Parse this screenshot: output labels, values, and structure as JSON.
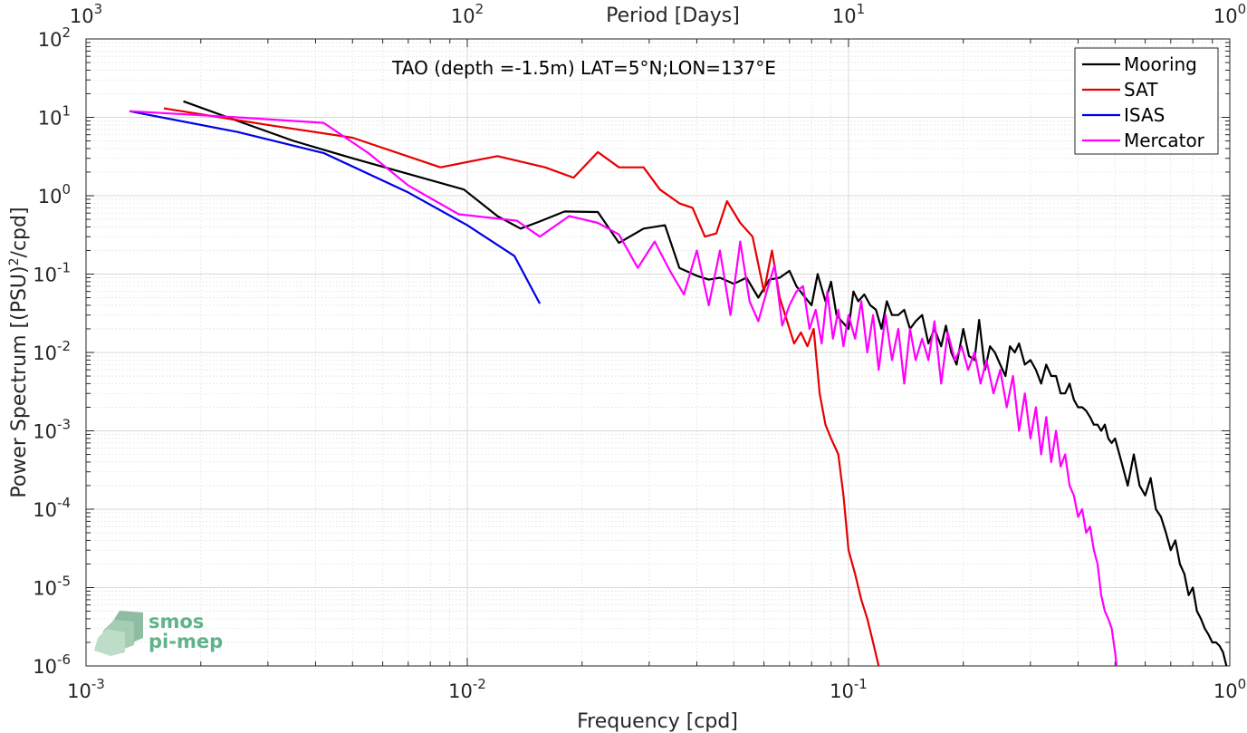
{
  "chart_data": {
    "type": "line",
    "title": "TAO (depth =-1.5m) LAT=5°N;LON=137°E",
    "xlabel": "Frequency [cpd]",
    "ylabel": "Power Spectrum [(PSU)²/cpd]",
    "top_xlabel": "Period [Days]",
    "xscale": "log",
    "yscale": "log",
    "xlim": [
      0.001,
      1
    ],
    "ylim": [
      1e-06,
      100
    ],
    "grid": true,
    "legend_position": "top-right",
    "x_ticks": [
      {
        "base": "10",
        "exp": "-3"
      },
      {
        "base": "10",
        "exp": "-2"
      },
      {
        "base": "10",
        "exp": "-1"
      },
      {
        "base": "10",
        "exp": "0"
      }
    ],
    "top_ticks": [
      {
        "base": "10",
        "exp": "3"
      },
      {
        "base": "10",
        "exp": "2"
      },
      {
        "base": "10",
        "exp": "1"
      },
      {
        "base": "10",
        "exp": "0"
      }
    ],
    "y_ticks": [
      {
        "base": "10",
        "exp": "2"
      },
      {
        "base": "10",
        "exp": "1"
      },
      {
        "base": "10",
        "exp": "0"
      },
      {
        "base": "10",
        "exp": "-1"
      },
      {
        "base": "10",
        "exp": "-2"
      },
      {
        "base": "10",
        "exp": "-3"
      },
      {
        "base": "10",
        "exp": "-4"
      },
      {
        "base": "10",
        "exp": "-5"
      },
      {
        "base": "10",
        "exp": "-6"
      }
    ],
    "series": [
      {
        "name": "Mooring",
        "color": "#000000",
        "x": [
          0.0018,
          0.0025,
          0.0035,
          0.005,
          0.007,
          0.0098,
          0.012,
          0.0138,
          0.0155,
          0.018,
          0.022,
          0.025,
          0.029,
          0.033,
          0.036,
          0.04,
          0.043,
          0.046,
          0.05,
          0.054,
          0.058,
          0.062,
          0.066,
          0.07,
          0.073,
          0.077,
          0.08,
          0.083,
          0.087,
          0.09,
          0.093,
          0.096,
          0.1,
          0.103,
          0.106,
          0.11,
          0.114,
          0.118,
          0.122,
          0.126,
          0.13,
          0.135,
          0.14,
          0.145,
          0.15,
          0.156,
          0.162,
          0.168,
          0.175,
          0.18,
          0.186,
          0.192,
          0.2,
          0.207,
          0.214,
          0.22,
          0.228,
          0.235,
          0.242,
          0.25,
          0.258,
          0.265,
          0.273,
          0.28,
          0.29,
          0.3,
          0.31,
          0.32,
          0.33,
          0.34,
          0.35,
          0.36,
          0.37,
          0.38,
          0.39,
          0.4,
          0.41,
          0.42,
          0.43,
          0.44,
          0.45,
          0.46,
          0.47,
          0.48,
          0.49,
          0.5,
          0.52,
          0.54,
          0.56,
          0.58,
          0.6,
          0.62,
          0.64,
          0.66,
          0.68,
          0.7,
          0.72,
          0.74,
          0.76,
          0.78,
          0.8,
          0.82,
          0.84,
          0.86,
          0.88,
          0.9,
          0.92,
          0.94,
          0.96,
          0.98
        ],
        "y": [
          16,
          9,
          5,
          3,
          1.9,
          1.2,
          0.55,
          0.38,
          0.47,
          0.63,
          0.62,
          0.25,
          0.38,
          0.42,
          0.12,
          0.095,
          0.085,
          0.09,
          0.075,
          0.09,
          0.05,
          0.085,
          0.09,
          0.11,
          0.07,
          0.05,
          0.04,
          0.1,
          0.045,
          0.08,
          0.03,
          0.025,
          0.02,
          0.06,
          0.045,
          0.055,
          0.04,
          0.035,
          0.02,
          0.045,
          0.03,
          0.03,
          0.035,
          0.02,
          0.025,
          0.03,
          0.013,
          0.02,
          0.012,
          0.022,
          0.01,
          0.007,
          0.02,
          0.009,
          0.008,
          0.026,
          0.006,
          0.012,
          0.01,
          0.007,
          0.005,
          0.012,
          0.01,
          0.013,
          0.007,
          0.008,
          0.006,
          0.004,
          0.007,
          0.005,
          0.005,
          0.003,
          0.003,
          0.004,
          0.0025,
          0.002,
          0.002,
          0.0018,
          0.0015,
          0.0012,
          0.0012,
          0.001,
          0.0012,
          0.0008,
          0.0007,
          0.0008,
          0.0004,
          0.0002,
          0.0005,
          0.0002,
          0.00015,
          0.00025,
          0.0001,
          8e-05,
          5e-05,
          3e-05,
          4e-05,
          2e-05,
          1.5e-05,
          8e-06,
          1e-05,
          5e-06,
          4e-06,
          3e-06,
          2.5e-06,
          2e-06,
          2e-06,
          1.8e-06,
          1.5e-06,
          1e-06
        ]
      },
      {
        "name": "SAT",
        "color": "#e60000",
        "x": [
          0.0016,
          0.003,
          0.005,
          0.0085,
          0.012,
          0.016,
          0.019,
          0.022,
          0.025,
          0.029,
          0.032,
          0.036,
          0.039,
          0.042,
          0.045,
          0.048,
          0.052,
          0.056,
          0.06,
          0.063,
          0.066,
          0.069,
          0.072,
          0.075,
          0.078,
          0.081,
          0.084,
          0.087,
          0.09,
          0.094,
          0.097,
          0.1,
          0.104,
          0.108,
          0.112,
          0.116,
          0.12
        ],
        "y": [
          13,
          8,
          5.5,
          2.3,
          3.2,
          2.3,
          1.7,
          3.6,
          2.3,
          2.3,
          1.2,
          0.8,
          0.7,
          0.3,
          0.33,
          0.85,
          0.45,
          0.3,
          0.06,
          0.2,
          0.05,
          0.025,
          0.013,
          0.018,
          0.012,
          0.02,
          0.003,
          0.0012,
          0.0008,
          0.0005,
          0.00015,
          3e-05,
          1.5e-05,
          7e-06,
          4e-06,
          2e-06,
          1e-06
        ]
      },
      {
        "name": "ISAS",
        "color": "#0000e6",
        "x": [
          0.0013,
          0.0025,
          0.0042,
          0.007,
          0.01,
          0.0133,
          0.0155
        ],
        "y": [
          12,
          6.5,
          3.5,
          1.1,
          0.42,
          0.17,
          0.042
        ]
      },
      {
        "name": "Mercator",
        "color": "#ff00ff",
        "x": [
          0.0013,
          0.0025,
          0.0042,
          0.0055,
          0.007,
          0.0095,
          0.0135,
          0.0155,
          0.0185,
          0.022,
          0.025,
          0.028,
          0.031,
          0.034,
          0.037,
          0.04,
          0.043,
          0.046,
          0.049,
          0.052,
          0.055,
          0.058,
          0.061,
          0.064,
          0.067,
          0.07,
          0.073,
          0.076,
          0.079,
          0.082,
          0.085,
          0.088,
          0.091,
          0.094,
          0.097,
          0.1,
          0.104,
          0.108,
          0.112,
          0.116,
          0.12,
          0.125,
          0.13,
          0.135,
          0.14,
          0.145,
          0.15,
          0.156,
          0.162,
          0.168,
          0.175,
          0.182,
          0.19,
          0.198,
          0.206,
          0.214,
          0.222,
          0.23,
          0.24,
          0.25,
          0.26,
          0.27,
          0.28,
          0.29,
          0.3,
          0.31,
          0.32,
          0.33,
          0.34,
          0.35,
          0.36,
          0.37,
          0.38,
          0.39,
          0.4,
          0.41,
          0.42,
          0.43,
          0.44,
          0.45,
          0.46,
          0.47,
          0.48,
          0.49,
          0.5,
          0.505
        ],
        "y": [
          12,
          10,
          8.5,
          3.5,
          1.35,
          0.58,
          0.48,
          0.3,
          0.55,
          0.45,
          0.32,
          0.12,
          0.26,
          0.11,
          0.055,
          0.2,
          0.04,
          0.2,
          0.03,
          0.26,
          0.045,
          0.025,
          0.06,
          0.13,
          0.022,
          0.04,
          0.06,
          0.07,
          0.02,
          0.035,
          0.013,
          0.06,
          0.015,
          0.035,
          0.012,
          0.03,
          0.015,
          0.045,
          0.01,
          0.03,
          0.006,
          0.03,
          0.008,
          0.02,
          0.004,
          0.02,
          0.008,
          0.015,
          0.008,
          0.025,
          0.004,
          0.018,
          0.008,
          0.012,
          0.006,
          0.01,
          0.004,
          0.008,
          0.003,
          0.006,
          0.002,
          0.005,
          0.001,
          0.003,
          0.0008,
          0.002,
          0.0005,
          0.0015,
          0.0004,
          0.001,
          0.00035,
          0.0005,
          0.0002,
          0.00015,
          8e-05,
          0.0001,
          5e-05,
          6e-05,
          3e-05,
          2e-05,
          8e-06,
          5e-06,
          4e-06,
          3e-06,
          1.5e-06,
          1e-06
        ]
      }
    ]
  },
  "logo": {
    "line1": "smos",
    "line2": "pi-mep",
    "color": "#5fb38a"
  }
}
